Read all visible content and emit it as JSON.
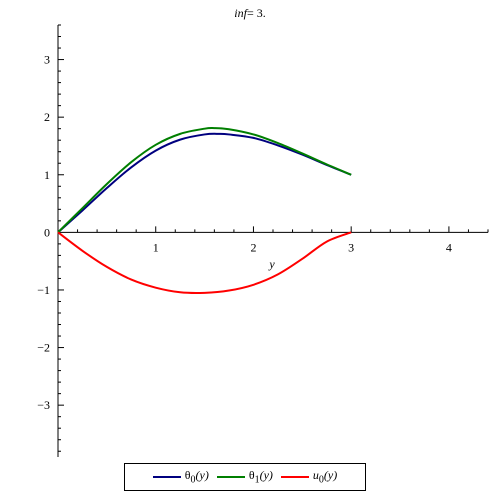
{
  "chart_data": {
    "type": "line",
    "title": "inf= 3.",
    "xlabel": "y",
    "ylabel": "",
    "xlim": [
      0,
      4.4
    ],
    "ylim": [
      -3.9,
      3.6
    ],
    "x_ticks": [
      1,
      2,
      3,
      4
    ],
    "y_ticks": [
      -3,
      -2,
      -1,
      0,
      1,
      2,
      3
    ],
    "x_tick_labels": [
      "1",
      "2",
      "3",
      "4"
    ],
    "y_tick_labels": [
      "−3",
      "−2",
      "−1",
      "0",
      "1",
      "2",
      "3"
    ],
    "grid": false,
    "legend_position": "bottom",
    "series": [
      {
        "name": "θ0(y)",
        "color": "#00007f",
        "x": [
          0,
          0.25,
          0.5,
          0.75,
          1.0,
          1.25,
          1.5,
          1.65,
          1.75,
          2.0,
          2.25,
          2.5,
          2.75,
          3.0
        ],
        "y": [
          0,
          0.38,
          0.77,
          1.13,
          1.42,
          1.61,
          1.7,
          1.71,
          1.7,
          1.64,
          1.51,
          1.35,
          1.17,
          1.0
        ]
      },
      {
        "name": "θ1(y)",
        "color": "#007f00",
        "x": [
          0,
          0.25,
          0.5,
          0.75,
          1.0,
          1.25,
          1.5,
          1.6,
          1.75,
          2.0,
          2.25,
          2.5,
          2.75,
          3.0
        ],
        "y": [
          0,
          0.42,
          0.84,
          1.22,
          1.52,
          1.71,
          1.8,
          1.81,
          1.79,
          1.7,
          1.55,
          1.37,
          1.18,
          1.0
        ]
      },
      {
        "name": "u0(y)",
        "color": "#ff0000",
        "x": [
          0,
          0.25,
          0.5,
          0.75,
          1.0,
          1.25,
          1.5,
          1.75,
          2.0,
          2.25,
          2.5,
          2.75,
          3.0
        ],
        "y": [
          0,
          -0.32,
          -0.6,
          -0.82,
          -0.96,
          -1.04,
          -1.05,
          -1.01,
          -0.91,
          -0.73,
          -0.46,
          -0.16,
          0
        ]
      }
    ]
  },
  "legend": {
    "items": [
      {
        "symbol": "θ",
        "sub": "0",
        "arg": "(y)"
      },
      {
        "symbol": "θ",
        "sub": "1",
        "arg": "(y)"
      },
      {
        "symbol": "u",
        "sub": "0",
        "arg": "(y)"
      }
    ]
  }
}
